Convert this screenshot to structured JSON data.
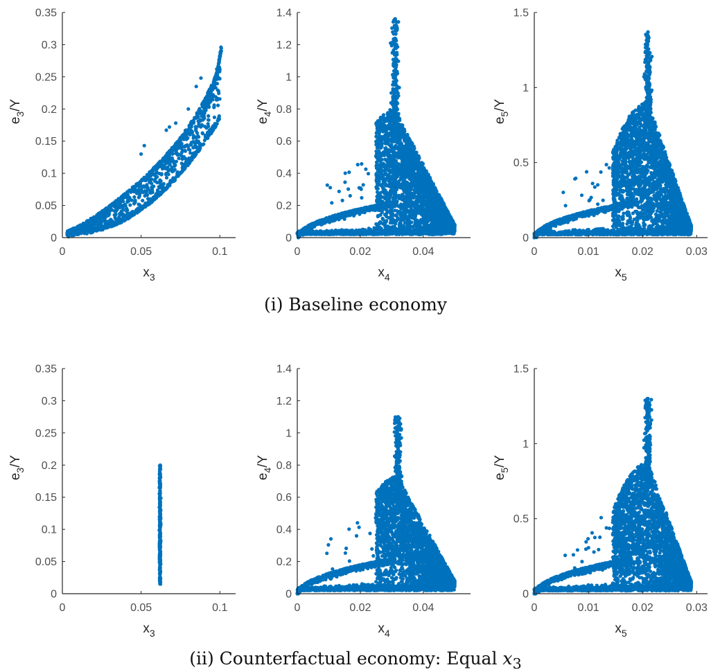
{
  "colors": {
    "marker": "#0072BD",
    "axis": "#262626",
    "tick_label": "#4d4d4d"
  },
  "captions": {
    "baseline": "(i) Baseline economy",
    "counterfactual_prefix": "(ii) Counterfactual economy: Equal ",
    "counterfactual_var": "x",
    "counterfactual_sub": "3"
  },
  "chart_data": [
    {
      "type": "scatter",
      "group": "baseline",
      "shape": "curve3",
      "xlabel": "x",
      "xlabel_sub": "3",
      "ylabel": "e",
      "ylabel_sub": "3",
      "ylabel_tail": "/Y",
      "xlim": [
        0,
        0.11
      ],
      "ylim": [
        0,
        0.35
      ],
      "xticks": [
        0,
        0.05,
        0.1
      ],
      "xtick_labels": [
        "0",
        "0.05",
        "0.1"
      ],
      "yticks": [
        0,
        0.05,
        0.1,
        0.15,
        0.2,
        0.25,
        0.3,
        0.35
      ],
      "ytick_labels": [
        "0",
        "0.05",
        "0.1",
        "0.15",
        "0.2",
        "0.25",
        "0.3",
        "0.35"
      ]
    },
    {
      "type": "scatter",
      "group": "baseline",
      "shape": "spike",
      "xlabel": "x",
      "xlabel_sub": "4",
      "ylabel": "e",
      "ylabel_sub": "4",
      "ylabel_tail": "/Y",
      "xlim": [
        0,
        0.055
      ],
      "ylim": [
        0,
        1.4
      ],
      "xticks": [
        0,
        0.02,
        0.04
      ],
      "xtick_labels": [
        "0",
        "0.02",
        "0.04"
      ],
      "yticks": [
        0,
        0.2,
        0.4,
        0.6,
        0.8,
        1,
        1.2,
        1.4
      ],
      "ytick_labels": [
        "0",
        "0.2",
        "0.4",
        "0.6",
        "0.8",
        "1",
        "1.2",
        "1.4"
      ],
      "peak_x": 0.031,
      "peak_y": 1.36,
      "x_max": 0.05,
      "envelope": 0.65
    },
    {
      "type": "scatter",
      "group": "baseline",
      "shape": "spike",
      "xlabel": "x",
      "xlabel_sub": "5",
      "ylabel": "e",
      "ylabel_sub": "5",
      "ylabel_tail": "/Y",
      "xlim": [
        0,
        0.032
      ],
      "ylim": [
        0,
        1.5
      ],
      "xticks": [
        0,
        0.01,
        0.02,
        0.03
      ],
      "xtick_labels": [
        "0",
        "0.01",
        "0.02",
        "0.03"
      ],
      "yticks": [
        0,
        0.5,
        1,
        1.5
      ],
      "ytick_labels": [
        "0",
        "0.5",
        "1",
        "1.5"
      ],
      "peak_x": 0.021,
      "peak_y": 1.37,
      "x_max": 0.029,
      "envelope": 0.75
    },
    {
      "type": "scatter",
      "group": "counterfactual",
      "shape": "vertical",
      "xlabel": "x",
      "xlabel_sub": "3",
      "ylabel": "e",
      "ylabel_sub": "3",
      "ylabel_tail": "/Y",
      "xlim": [
        0,
        0.11
      ],
      "ylim": [
        0,
        0.35
      ],
      "xticks": [
        0,
        0.05,
        0.1
      ],
      "xtick_labels": [
        "0",
        "0.05",
        "0.1"
      ],
      "yticks": [
        0,
        0.05,
        0.1,
        0.15,
        0.2,
        0.25,
        0.3,
        0.35
      ],
      "ytick_labels": [
        "0",
        "0.05",
        "0.1",
        "0.15",
        "0.2",
        "0.25",
        "0.3",
        "0.35"
      ],
      "x_value": 0.062,
      "y_range": [
        0.015,
        0.2
      ]
    },
    {
      "type": "scatter",
      "group": "counterfactual",
      "shape": "spike",
      "xlabel": "x",
      "xlabel_sub": "4",
      "ylabel": "e",
      "ylabel_sub": "4",
      "ylabel_tail": "/Y",
      "xlim": [
        0,
        0.055
      ],
      "ylim": [
        0,
        1.4
      ],
      "xticks": [
        0,
        0.02,
        0.04
      ],
      "xtick_labels": [
        "0",
        "0.02",
        "0.04"
      ],
      "yticks": [
        0,
        0.2,
        0.4,
        0.6,
        0.8,
        1,
        1.2,
        1.4
      ],
      "ytick_labels": [
        "0",
        "0.2",
        "0.4",
        "0.6",
        "0.8",
        "1",
        "1.2",
        "1.4"
      ],
      "peak_x": 0.032,
      "peak_y": 1.1,
      "x_max": 0.05,
      "envelope": 0.58
    },
    {
      "type": "scatter",
      "group": "counterfactual",
      "shape": "spike",
      "xlabel": "x",
      "xlabel_sub": "5",
      "ylabel": "e",
      "ylabel_sub": "5",
      "ylabel_tail": "/Y",
      "xlim": [
        0,
        0.032
      ],
      "ylim": [
        0,
        1.5
      ],
      "xticks": [
        0,
        0.01,
        0.02,
        0.03
      ],
      "xtick_labels": [
        "0",
        "0.01",
        "0.02",
        "0.03"
      ],
      "yticks": [
        0,
        0.5,
        1,
        1.5
      ],
      "ytick_labels": [
        "0",
        "0.5",
        "1",
        "1.5"
      ],
      "peak_x": 0.021,
      "peak_y": 1.3,
      "x_max": 0.029,
      "envelope": 0.72
    }
  ]
}
